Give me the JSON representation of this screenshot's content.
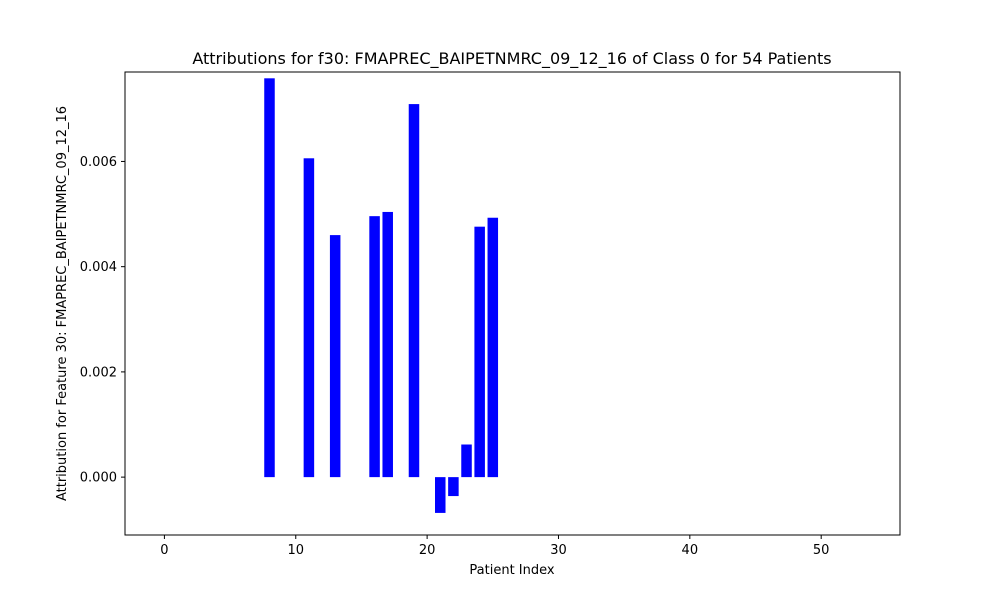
{
  "chart_data": {
    "type": "bar",
    "title": "Attributions for f30: FMAPREC_BAIPETNMRC_09_12_16 of Class 0 for 54 Patients",
    "xlabel": "Patient Index",
    "ylabel": "Attribution for Feature 30: FMAPREC_BAIPETNMRC_09_12_16",
    "xlim": [
      -3,
      56
    ],
    "ylim": [
      -0.0011,
      0.0077
    ],
    "x_ticks": [
      0,
      10,
      20,
      30,
      40,
      50
    ],
    "y_ticks": [
      0.0,
      0.002,
      0.004,
      0.006
    ],
    "y_tick_labels": [
      "0.000",
      "0.002",
      "0.004",
      "0.006"
    ],
    "bar_color": "#0000ff",
    "grid": false,
    "legend": "none",
    "series": [
      {
        "x": [
          8,
          11,
          13,
          16,
          17,
          19,
          21,
          22,
          23,
          24,
          25
        ],
        "values": [
          0.00758,
          0.00606,
          0.0046,
          0.00496,
          0.00504,
          0.00709,
          -0.00068,
          -0.00036,
          0.00062,
          0.00476,
          0.00493
        ]
      }
    ]
  }
}
